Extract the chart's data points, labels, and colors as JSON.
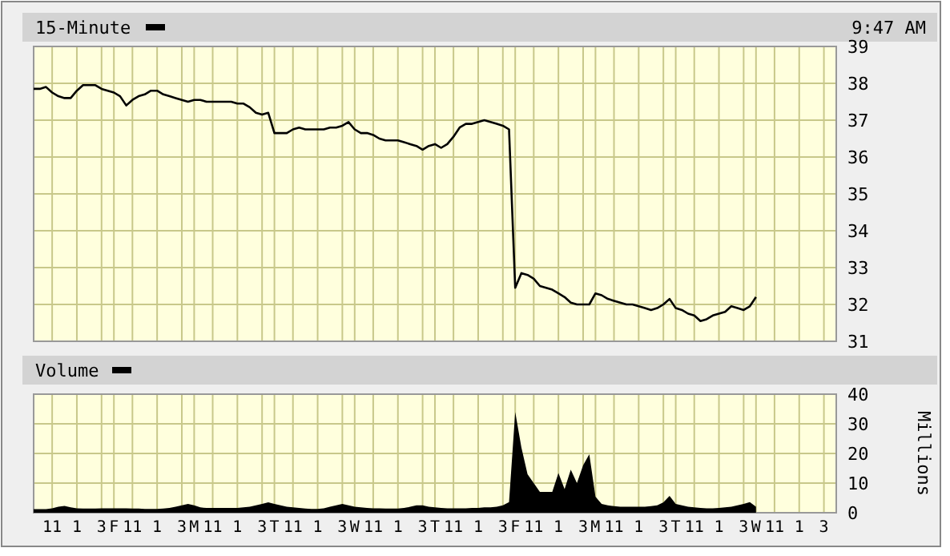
{
  "chart_data": [
    {
      "type": "line",
      "legend": "top left",
      "grid": true,
      "annotations": [
        "9:47 AM"
      ],
      "ylim": [
        31,
        39
      ],
      "yticks": [
        31,
        32,
        33,
        34,
        35,
        36,
        37,
        38,
        39
      ],
      "categories": [
        null,
        null,
        null,
        null,
        null,
        null,
        null,
        null,
        null,
        null,
        null,
        null,
        null,
        null,
        null,
        null,
        null,
        null,
        null,
        null,
        null,
        null,
        null,
        null,
        null,
        null,
        null,
        null,
        null,
        null,
        null,
        null,
        null,
        null,
        null,
        null,
        null,
        null,
        null,
        null,
        null,
        null,
        null,
        null,
        null,
        null,
        null,
        null,
        null,
        null,
        null,
        null,
        null,
        null,
        null,
        null,
        null,
        null,
        null,
        null,
        null,
        null,
        null,
        null,
        null,
        null,
        null,
        null,
        null,
        null,
        null,
        null,
        null,
        null,
        null,
        null,
        null,
        null,
        null,
        null,
        null,
        null,
        null,
        null,
        null,
        null,
        null,
        null,
        null,
        null,
        null,
        null,
        null,
        null,
        null,
        null,
        null,
        null,
        null,
        null,
        null,
        null,
        null,
        null,
        null,
        null,
        null,
        null,
        null,
        null,
        null,
        null,
        null,
        null,
        null,
        null,
        null,
        null,
        null,
        null,
        null,
        null,
        null,
        null,
        null,
        null,
        null,
        null,
        null,
        null
      ],
      "series": [
        {
          "name": "15-Minute",
          "color": "#000000",
          "values": [
            37.85,
            37.85,
            37.9,
            37.75,
            37.65,
            37.6,
            37.6,
            37.8,
            37.95,
            37.95,
            37.95,
            37.85,
            37.8,
            37.75,
            37.65,
            37.4,
            37.55,
            37.65,
            37.7,
            37.8,
            37.8,
            37.7,
            37.65,
            37.6,
            37.55,
            37.5,
            37.55,
            37.55,
            37.5,
            37.5,
            37.5,
            37.5,
            37.5,
            37.45,
            37.45,
            37.35,
            37.2,
            37.15,
            37.2,
            36.65,
            36.65,
            36.65,
            36.75,
            36.8,
            36.75,
            36.75,
            36.75,
            36.75,
            36.8,
            36.8,
            36.85,
            36.95,
            36.75,
            36.65,
            36.65,
            36.6,
            36.5,
            36.45,
            36.45,
            36.45,
            36.4,
            36.35,
            36.3,
            36.2,
            36.3,
            36.35,
            36.25,
            36.35,
            36.55,
            36.8,
            36.9,
            36.9,
            36.95,
            37.0,
            36.95,
            36.9,
            36.85,
            36.75,
            32.45,
            32.85,
            32.8,
            32.7,
            32.5,
            32.45,
            32.4,
            32.3,
            32.2,
            32.05,
            32.0,
            32.0,
            32.0,
            32.3,
            32.25,
            32.15,
            32.1,
            32.05,
            32.0,
            32.0,
            31.95,
            31.9,
            31.85,
            31.9,
            32.0,
            32.15,
            31.9,
            31.85,
            31.75,
            31.7,
            31.55,
            31.6,
            31.7,
            31.75,
            31.8,
            31.95,
            31.9,
            31.85,
            31.95,
            32.2,
            null,
            null,
            null,
            null,
            null,
            null,
            null,
            null,
            null,
            null,
            null,
            null
          ]
        }
      ]
    },
    {
      "type": "area",
      "legend": "top left",
      "grid": true,
      "ylabel": "Millions",
      "ylim": [
        0,
        40
      ],
      "yticks": [
        0,
        10,
        20,
        30,
        40
      ],
      "categories": [
        null,
        null,
        null,
        "11",
        null,
        null,
        null,
        "1",
        null,
        null,
        null,
        "3",
        null,
        "F",
        null,
        null,
        "11",
        null,
        null,
        null,
        "1",
        null,
        null,
        null,
        "3",
        null,
        "M",
        null,
        null,
        "11",
        null,
        null,
        null,
        "1",
        null,
        null,
        null,
        "3",
        null,
        "T",
        null,
        null,
        "11",
        null,
        null,
        null,
        "1",
        null,
        null,
        null,
        "3",
        null,
        "W",
        null,
        null,
        "11",
        null,
        null,
        null,
        "1",
        null,
        null,
        null,
        "3",
        null,
        "T",
        null,
        null,
        "11",
        null,
        null,
        null,
        "1",
        null,
        null,
        null,
        "3",
        null,
        "F",
        null,
        null,
        "11",
        null,
        null,
        null,
        "1",
        null,
        null,
        null,
        "3",
        null,
        "M",
        null,
        null,
        "11",
        null,
        null,
        null,
        "1",
        null,
        null,
        null,
        "3",
        null,
        "T",
        null,
        null,
        "11",
        null,
        null,
        null,
        "1",
        null,
        null,
        null,
        "3",
        null,
        "W",
        null,
        null,
        "11",
        null,
        null,
        null,
        "1",
        null,
        null,
        null,
        "3",
        null
      ],
      "series": [
        {
          "name": "Volume",
          "color": "#000000",
          "values": [
            1.2,
            1.2,
            1.2,
            1.5,
            2,
            2.3,
            1.8,
            1.5,
            1.4,
            1.4,
            1.4,
            1.5,
            1.5,
            1.5,
            1.5,
            1.5,
            1.4,
            1.4,
            1.3,
            1.3,
            1.3,
            1.4,
            1.6,
            2,
            2.5,
            3,
            2.5,
            1.8,
            1.6,
            1.6,
            1.6,
            1.6,
            1.6,
            1.6,
            1.8,
            2,
            2.5,
            3,
            3.5,
            3,
            2.5,
            2,
            1.8,
            1.6,
            1.4,
            1.3,
            1.3,
            1.5,
            2,
            2.5,
            3,
            2.5,
            2,
            1.8,
            1.6,
            1.5,
            1.5,
            1.4,
            1.4,
            1.4,
            1.6,
            2,
            2.5,
            2.5,
            2,
            1.8,
            1.6,
            1.5,
            1.5,
            1.5,
            1.5,
            1.6,
            1.6,
            1.8,
            1.8,
            2,
            2.5,
            3.6,
            34,
            22,
            13,
            10,
            7,
            7,
            7,
            13.4,
            8,
            14.5,
            10,
            16,
            19.7,
            5.4,
            3,
            2.5,
            2.2,
            2,
            2,
            2,
            2,
            2,
            2.2,
            2.5,
            3.5,
            5.7,
            3,
            2.5,
            2,
            1.8,
            1.6,
            1.5,
            1.5,
            1.6,
            1.8,
            2,
            2.5,
            3,
            3.6,
            2,
            null,
            null,
            null,
            null,
            null,
            null,
            null,
            null,
            null,
            null,
            null,
            null
          ]
        }
      ]
    }
  ]
}
